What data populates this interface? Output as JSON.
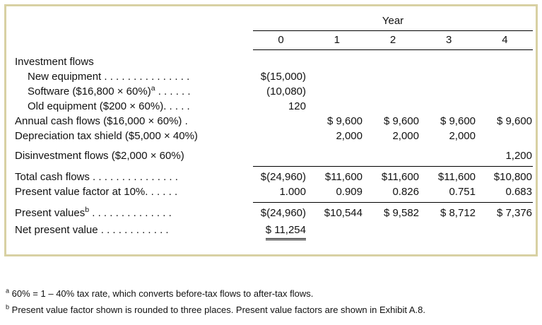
{
  "table": {
    "year_label": "Year",
    "col_headers": [
      "0",
      "1",
      "2",
      "3",
      "4"
    ],
    "rows": {
      "investment_flows": {
        "label": "Investment flows"
      },
      "new_equipment": {
        "label": "New equipment . . . . . . . . . . . . . . .",
        "c0": "$(15,000)"
      },
      "software": {
        "pre": "Software ($16,800 × 60%)",
        "sup": "a",
        "post": " . . . . . .",
        "c0": "(10,080)"
      },
      "old_equipment": {
        "label": "Old equipment ($200 × 60%). . . . .",
        "c0": "120"
      },
      "annual_cash_flows": {
        "label": "Annual cash flows ($16,000 × 60%) .",
        "c1": "$ 9,600",
        "c2": "$ 9,600",
        "c3": "$ 9,600",
        "c4": "$ 9,600"
      },
      "depreciation_tax_shield": {
        "label": "Depreciation tax shield ($5,000 × 40%)",
        "c1": "2,000",
        "c2": "2,000",
        "c3": "2,000"
      },
      "disinvestment_flows": {
        "label": "Disinvestment flows ($2,000 × 60%)",
        "c4": "1,200"
      },
      "total_cash_flows": {
        "label": "Total cash flows . . . . . . . . . . . . . . .",
        "c0": "$(24,960)",
        "c1": "$11,600",
        "c2": "$11,600",
        "c3": "$11,600",
        "c4": "$10,800"
      },
      "pv_factor": {
        "label": "Present value factor at 10%. . . . . .",
        "c0": "1.000",
        "c1": "0.909",
        "c2": "0.826",
        "c3": "0.751",
        "c4": "0.683"
      },
      "present_values": {
        "pre": "Present values",
        "sup": "b",
        "post": " . . . . . . . . . . . . . .",
        "c0": "$(24,960)",
        "c1": "$10,544",
        "c2": "$ 9,582",
        "c3": "$ 8,712",
        "c4": "$ 7,376"
      },
      "net_present_value": {
        "label": "Net present value  . . . . . . . . . . . .",
        "c0": "$ 11,254"
      }
    }
  },
  "footnotes": {
    "a": {
      "marker": "a",
      "text": " 60% = 1 – 40% tax rate, which converts before-tax flows to after-tax flows."
    },
    "b": {
      "marker": "b",
      "text": " Present value factor shown is rounded to three places. Present value factors are shown in Exhibit A.8."
    }
  },
  "colors": {
    "box_border": "#d8d1a3"
  }
}
